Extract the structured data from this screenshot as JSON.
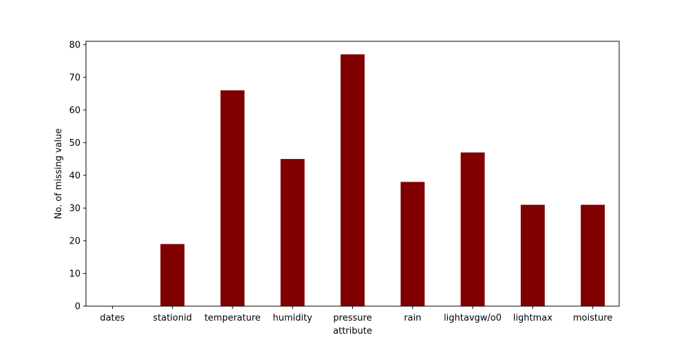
{
  "chart_data": {
    "type": "bar",
    "categories": [
      "dates",
      "stationid",
      "temperature",
      "humidity",
      "pressure",
      "rain",
      "lightavgw/o0",
      "lightmax",
      "moisture"
    ],
    "values": [
      0,
      19,
      66,
      45,
      77,
      38,
      47,
      31,
      31
    ],
    "title": "",
    "xlabel": "attribute",
    "ylabel": "No. of missing value",
    "ylim": [
      0,
      81
    ],
    "yticks": [
      0,
      10,
      20,
      30,
      40,
      50,
      60,
      70,
      80
    ],
    "bar_color": "#800000",
    "grid": false,
    "legend": "none"
  }
}
